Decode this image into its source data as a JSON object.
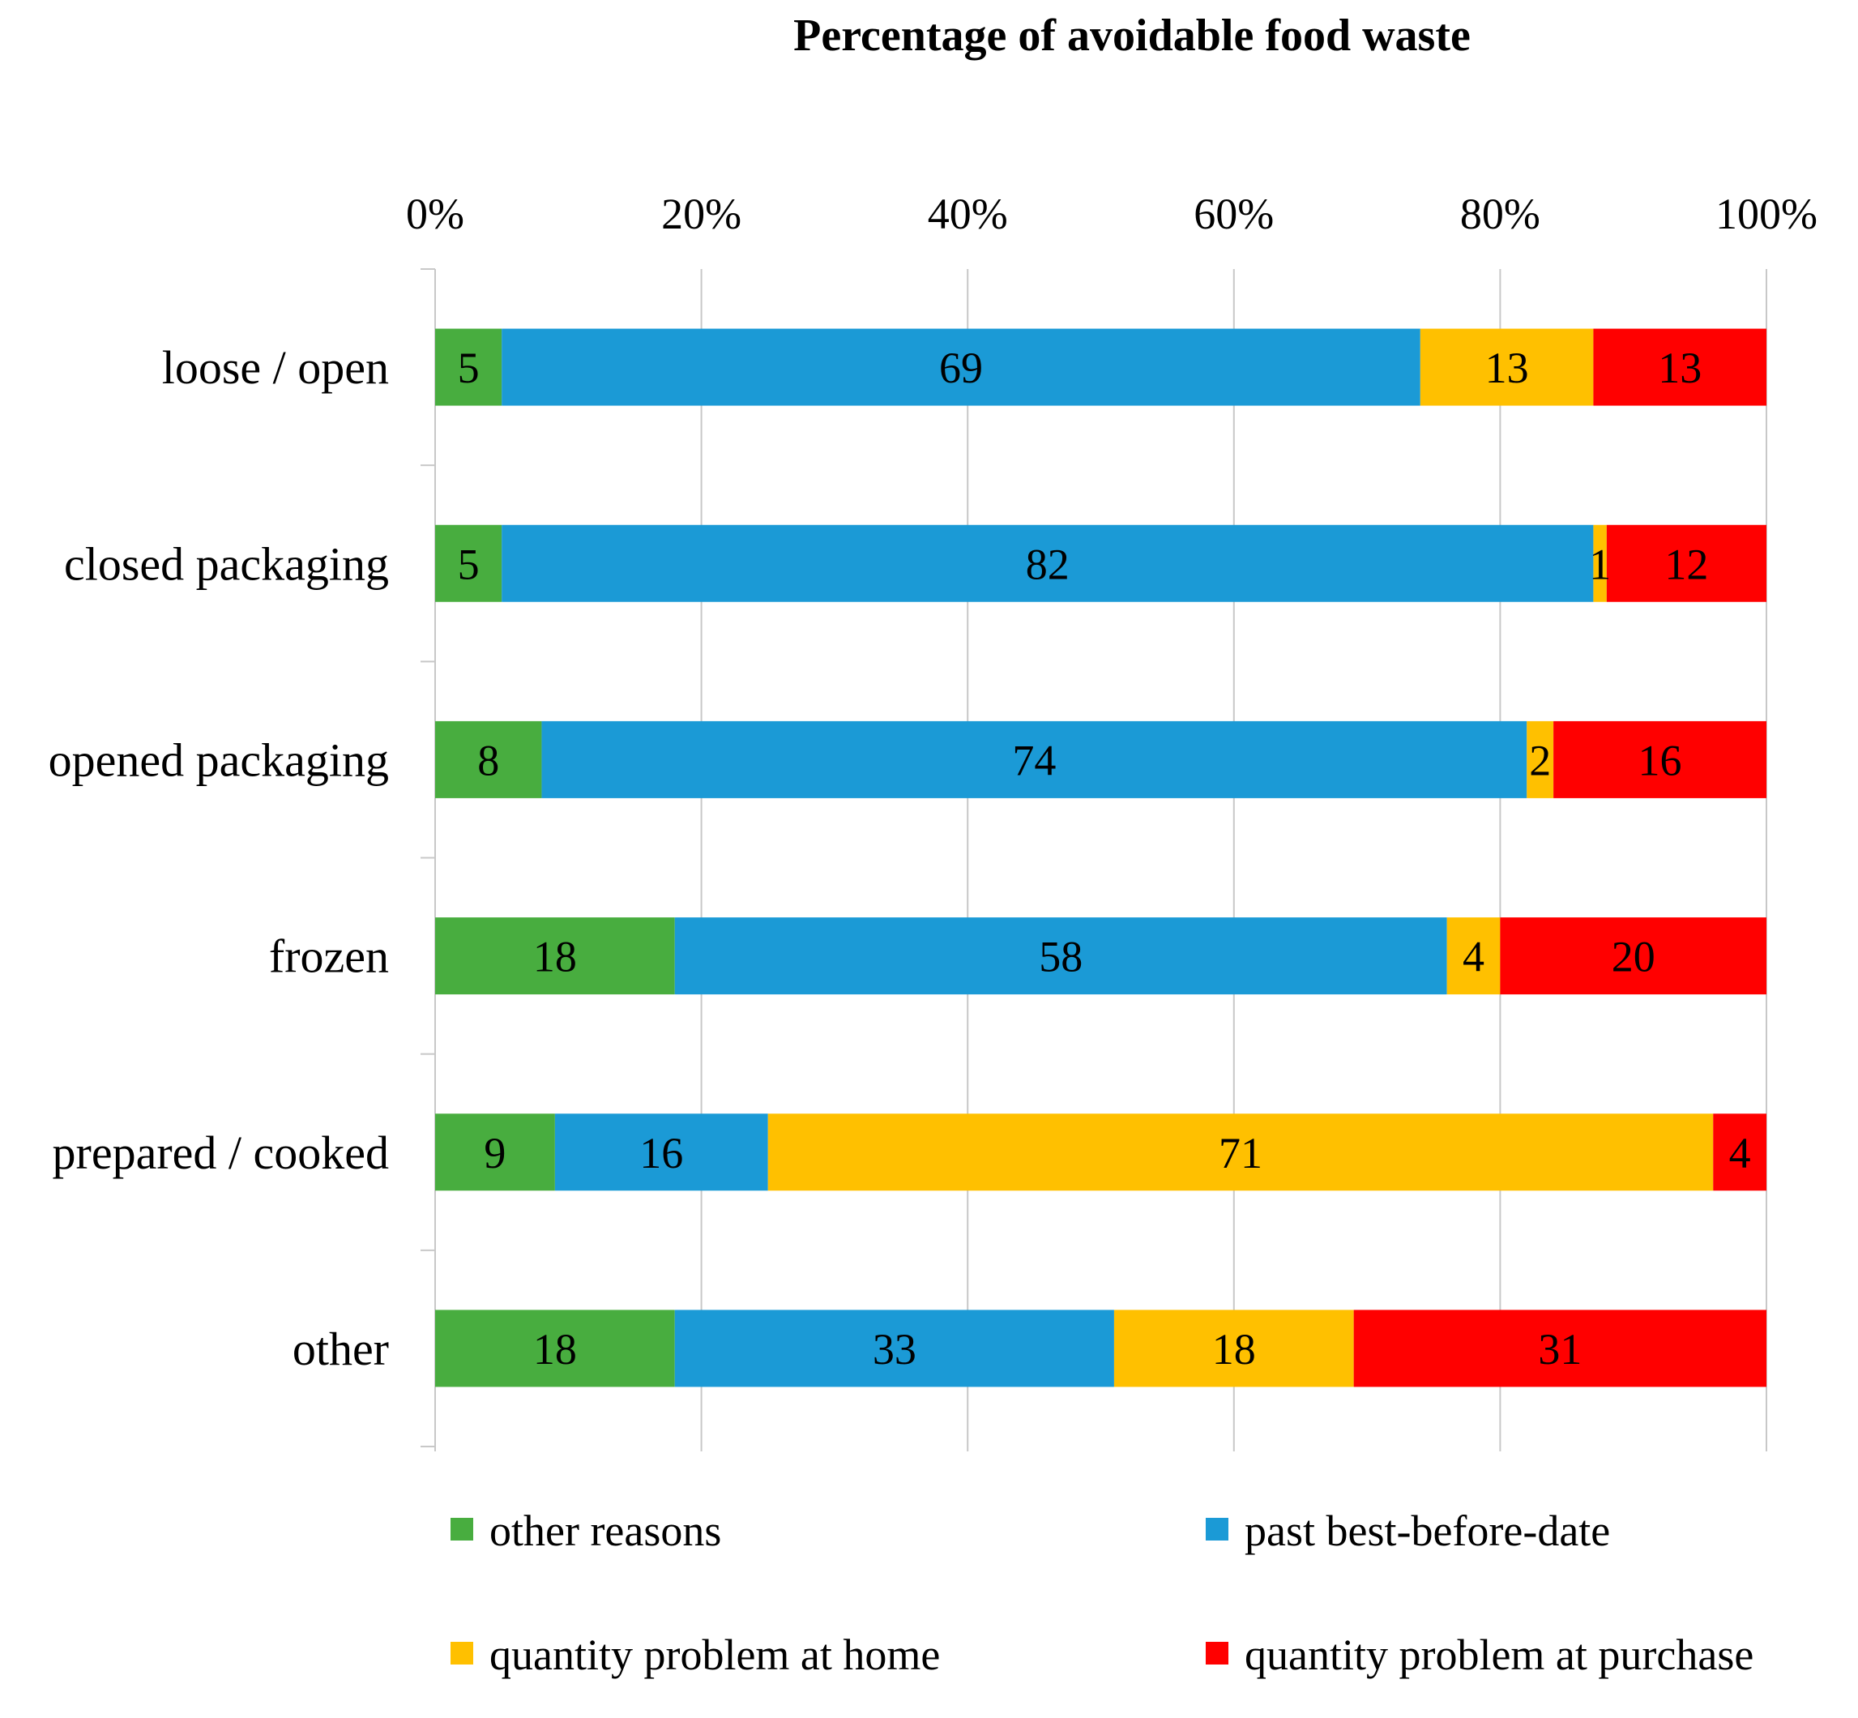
{
  "chart_data": {
    "type": "bar",
    "orientation": "horizontal",
    "stacked": "percent",
    "title": "Percentage of avoidable food waste",
    "xlabel": "",
    "ylabel": "",
    "xlim": [
      0,
      100
    ],
    "x_ticks": [
      "0%",
      "20%",
      "40%",
      "60%",
      "80%",
      "100%"
    ],
    "x_axis_position": "top",
    "grid": true,
    "legend_position": "bottom",
    "categories": [
      "loose / open",
      "closed packaging",
      "opened packaging",
      "frozen",
      "prepared / cooked",
      "other"
    ],
    "series": [
      {
        "name": "other reasons",
        "color": "#48AD3F",
        "values": [
          5,
          5,
          8,
          18,
          9,
          18
        ]
      },
      {
        "name": "past best-before-date",
        "color": "#1B9AD6",
        "values": [
          69,
          82,
          74,
          58,
          16,
          33
        ]
      },
      {
        "name": "quantity problem at home",
        "color": "#FFC000",
        "values": [
          13,
          1,
          2,
          4,
          71,
          18
        ]
      },
      {
        "name": "quantity problem at purchase",
        "color": "#FF0000",
        "values": [
          13,
          12,
          16,
          20,
          4,
          31
        ]
      }
    ]
  }
}
